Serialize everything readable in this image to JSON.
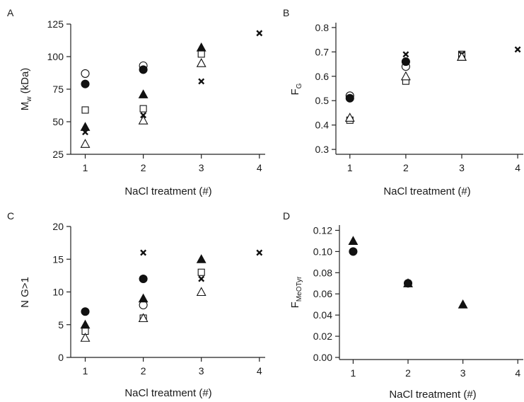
{
  "chart_data": [
    {
      "panel": "A",
      "type": "scatter",
      "xlabel": "NaCl treatment (#)",
      "ylabel": {
        "main": "M",
        "sub": "w",
        "rest": " (kDa)"
      },
      "xlim": [
        0.75,
        4.1
      ],
      "ylim": [
        25,
        125
      ],
      "xticks": [
        1,
        2,
        3,
        4
      ],
      "yticks": [
        25,
        50,
        75,
        100,
        125
      ],
      "tick_decimals": 0,
      "series": [
        {
          "marker": "open-circle",
          "points": [
            [
              1,
              87
            ],
            [
              2,
              93
            ]
          ]
        },
        {
          "marker": "filled-circle",
          "points": [
            [
              1,
              79
            ],
            [
              2,
              90
            ]
          ]
        },
        {
          "marker": "open-square",
          "points": [
            [
              1,
              59
            ],
            [
              2,
              60
            ],
            [
              3,
              102
            ]
          ]
        },
        {
          "marker": "filled-triangle",
          "points": [
            [
              1,
              46
            ],
            [
              2,
              71
            ],
            [
              3,
              107
            ]
          ]
        },
        {
          "marker": "cross",
          "points": [
            [
              1,
              42
            ],
            [
              2,
              55
            ],
            [
              3,
              81
            ],
            [
              4,
              118
            ]
          ]
        },
        {
          "marker": "open-triangle",
          "points": [
            [
              1,
              33
            ],
            [
              2,
              51
            ],
            [
              3,
              95
            ]
          ]
        }
      ]
    },
    {
      "panel": "B",
      "type": "scatter",
      "xlabel": "NaCl treatment (#)",
      "ylabel": {
        "main": "F",
        "sub": "G",
        "rest": ""
      },
      "xlim": [
        0.75,
        4.1
      ],
      "ylim": [
        0.28,
        0.82
      ],
      "xticks": [
        1,
        2,
        3,
        4
      ],
      "yticks": [
        0.3,
        0.4,
        0.5,
        0.6,
        0.7,
        0.8
      ],
      "tick_decimals": 1,
      "series": [
        {
          "marker": "open-circle",
          "points": [
            [
              1,
              0.52
            ],
            [
              2,
              0.64
            ]
          ]
        },
        {
          "marker": "filled-circle",
          "points": [
            [
              1,
              0.51
            ],
            [
              2,
              0.66
            ]
          ]
        },
        {
          "marker": "open-square",
          "points": [
            [
              1,
              0.42
            ],
            [
              2,
              0.58
            ],
            [
              3,
              0.69
            ]
          ]
        },
        {
          "marker": "filled-triangle",
          "points": [
            [
              3,
              0.68
            ]
          ]
        },
        {
          "marker": "cross",
          "points": [
            [
              2,
              0.69
            ],
            [
              3,
              0.69
            ],
            [
              4,
              0.71
            ]
          ]
        },
        {
          "marker": "open-triangle",
          "points": [
            [
              1,
              0.43
            ],
            [
              2,
              0.6
            ],
            [
              3,
              0.68
            ]
          ]
        }
      ]
    },
    {
      "panel": "C",
      "type": "scatter",
      "xlabel": "NaCl treatment (#)",
      "ylabel": {
        "main": "N G>1",
        "sub": "",
        "rest": ""
      },
      "xlim": [
        0.75,
        4.1
      ],
      "ylim": [
        0,
        20
      ],
      "xticks": [
        1,
        2,
        3,
        4
      ],
      "yticks": [
        0,
        5,
        10,
        15,
        20
      ],
      "tick_decimals": 0,
      "series": [
        {
          "marker": "open-circle",
          "points": [
            [
              2,
              8
            ]
          ]
        },
        {
          "marker": "filled-circle",
          "points": [
            [
              1,
              7
            ],
            [
              2,
              12
            ]
          ]
        },
        {
          "marker": "open-square",
          "points": [
            [
              1,
              4
            ],
            [
              2,
              6
            ],
            [
              3,
              13
            ]
          ]
        },
        {
          "marker": "filled-triangle",
          "points": [
            [
              1,
              5
            ],
            [
              2,
              9
            ],
            [
              3,
              15
            ]
          ]
        },
        {
          "marker": "cross",
          "points": [
            [
              2,
              16
            ],
            [
              3,
              12
            ],
            [
              4,
              16
            ]
          ]
        },
        {
          "marker": "open-triangle",
          "points": [
            [
              1,
              3
            ],
            [
              2,
              6
            ],
            [
              3,
              10
            ]
          ]
        }
      ]
    },
    {
      "panel": "D",
      "type": "scatter",
      "xlabel": "NaCl treatment (#)",
      "ylabel": {
        "main": "F",
        "sub": "MeOTyr",
        "rest": ""
      },
      "xlim": [
        0.75,
        4.1
      ],
      "ylim": [
        -0.002,
        0.125
      ],
      "xticks": [
        1,
        2,
        3,
        4
      ],
      "yticks": [
        0.0,
        0.02,
        0.04,
        0.06,
        0.08,
        0.1,
        0.12
      ],
      "tick_decimals": 2,
      "series": [
        {
          "marker": "filled-circle",
          "points": [
            [
              1,
              0.1
            ],
            [
              2,
              0.07
            ]
          ]
        },
        {
          "marker": "filled-triangle",
          "points": [
            [
              1,
              0.11
            ],
            [
              2,
              0.07
            ],
            [
              3,
              0.05
            ]
          ]
        }
      ]
    }
  ]
}
